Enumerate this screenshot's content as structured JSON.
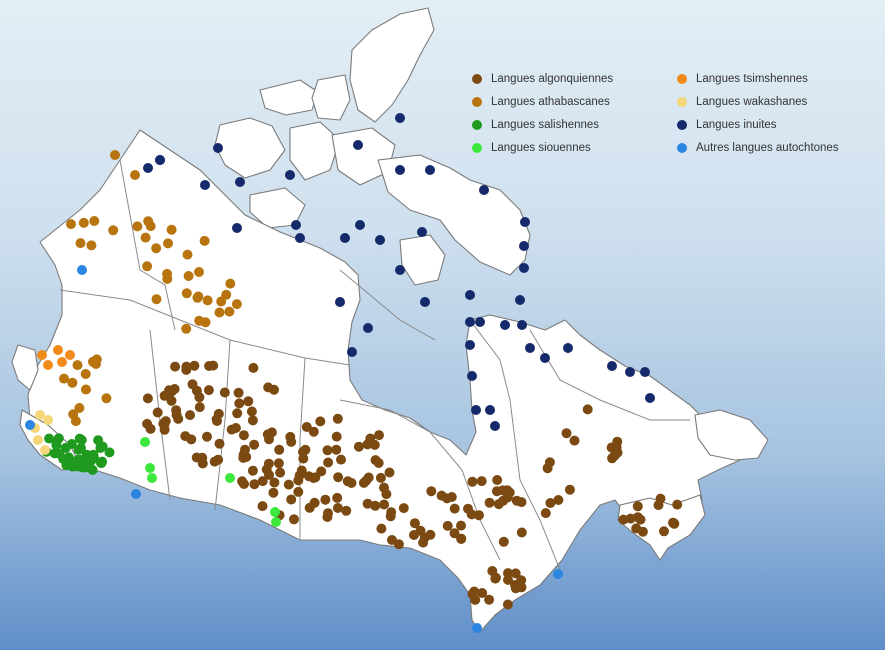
{
  "legend": {
    "items": [
      {
        "label": "Langues algonquiennes",
        "color": "#7a4a12"
      },
      {
        "label": "Langues athabascanes",
        "color": "#b8740f"
      },
      {
        "label": "Langues salishennes",
        "color": "#1f9a1f"
      },
      {
        "label": "Langues siouennes",
        "color": "#3be83b"
      },
      {
        "label": "Langues tsimshennes",
        "color": "#f28a1a"
      },
      {
        "label": "Langues wakashanes",
        "color": "#f5d77a"
      },
      {
        "label": "Langues inuites",
        "color": "#152a6b"
      },
      {
        "label": "Autres langues autochtones",
        "color": "#2a86e0"
      }
    ]
  }
}
